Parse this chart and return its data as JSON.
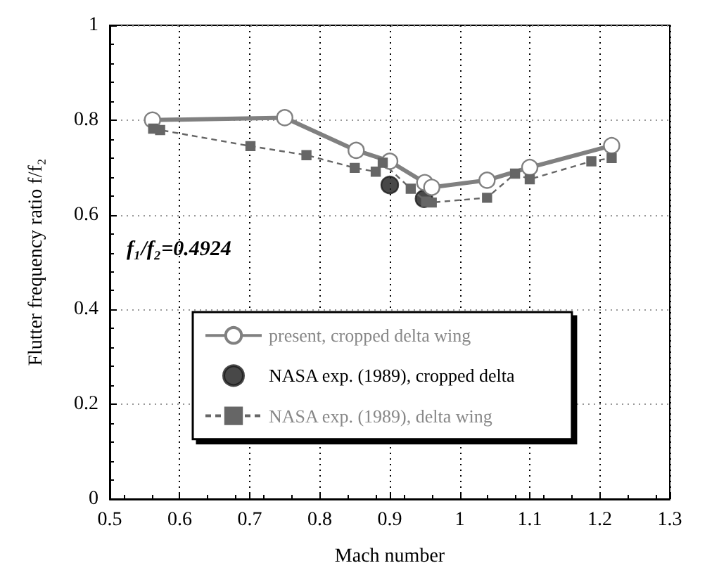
{
  "chart_data": {
    "type": "line",
    "xlabel": "Mach number",
    "ylabel": "Flutter frequency ratio f/f₂",
    "annotations": [
      "f₁/f₂=0.4924"
    ],
    "series": [
      {
        "name": "present, cropped delta wing",
        "type": "line",
        "color": "#808080",
        "marker": "circle",
        "line_style": "solid",
        "x": [
          0.561,
          0.75,
          0.852,
          0.9,
          0.95,
          0.96,
          1.039,
          1.1,
          1.217
        ],
        "values": [
          0.8,
          0.805,
          0.736,
          0.713,
          0.668,
          0.658,
          0.673,
          0.7,
          0.746
        ]
      },
      {
        "name": "NASA exp. (1989), cropped delta",
        "type": "scatter",
        "color": "#1a1a1a",
        "marker": "circle",
        "x": [
          0.9,
          0.949
        ],
        "values": [
          0.663,
          0.634
        ]
      },
      {
        "name": "NASA exp. (1989), delta wing",
        "type": "line",
        "color": "#666666",
        "marker": "square",
        "line_style": "dashed",
        "x": [
          0.562,
          0.572,
          0.701,
          0.781,
          0.85,
          0.88,
          0.89,
          0.93,
          0.952,
          0.96,
          1.039,
          1.079,
          1.1,
          1.188,
          1.217
        ],
        "values": [
          0.782,
          0.779,
          0.745,
          0.726,
          0.699,
          0.691,
          0.71,
          0.655,
          0.628,
          0.626,
          0.636,
          0.687,
          0.675,
          0.713,
          0.72
        ]
      }
    ],
    "xlim": [
      0.5,
      1.3
    ],
    "xticks": [
      0.5,
      0.6,
      0.7,
      0.8,
      0.9,
      1,
      1.1,
      1.2,
      1.3
    ],
    "ylim": [
      0,
      1
    ],
    "yticks": [
      0,
      0.2,
      0.4,
      0.6,
      0.8,
      1
    ],
    "grid": true,
    "legend": "bottom"
  }
}
